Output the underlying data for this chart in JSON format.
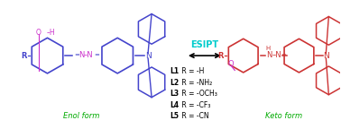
{
  "background": "white",
  "esipt_label": "ESIPT",
  "esipt_color": "#00CCCC",
  "enol_label": "Enol form",
  "keto_label": "Keto form",
  "green_color": "#00AA00",
  "blue_color": "#4444CC",
  "red_color": "#CC3333",
  "magenta_color": "#CC33CC",
  "legend": [
    [
      "L1",
      " R = -H"
    ],
    [
      "L2",
      " R = -NH₂"
    ],
    [
      "L3",
      " R = -OCH₃"
    ],
    [
      "L4",
      " R = -CF₃"
    ],
    [
      "L5",
      " R = -CN"
    ]
  ]
}
